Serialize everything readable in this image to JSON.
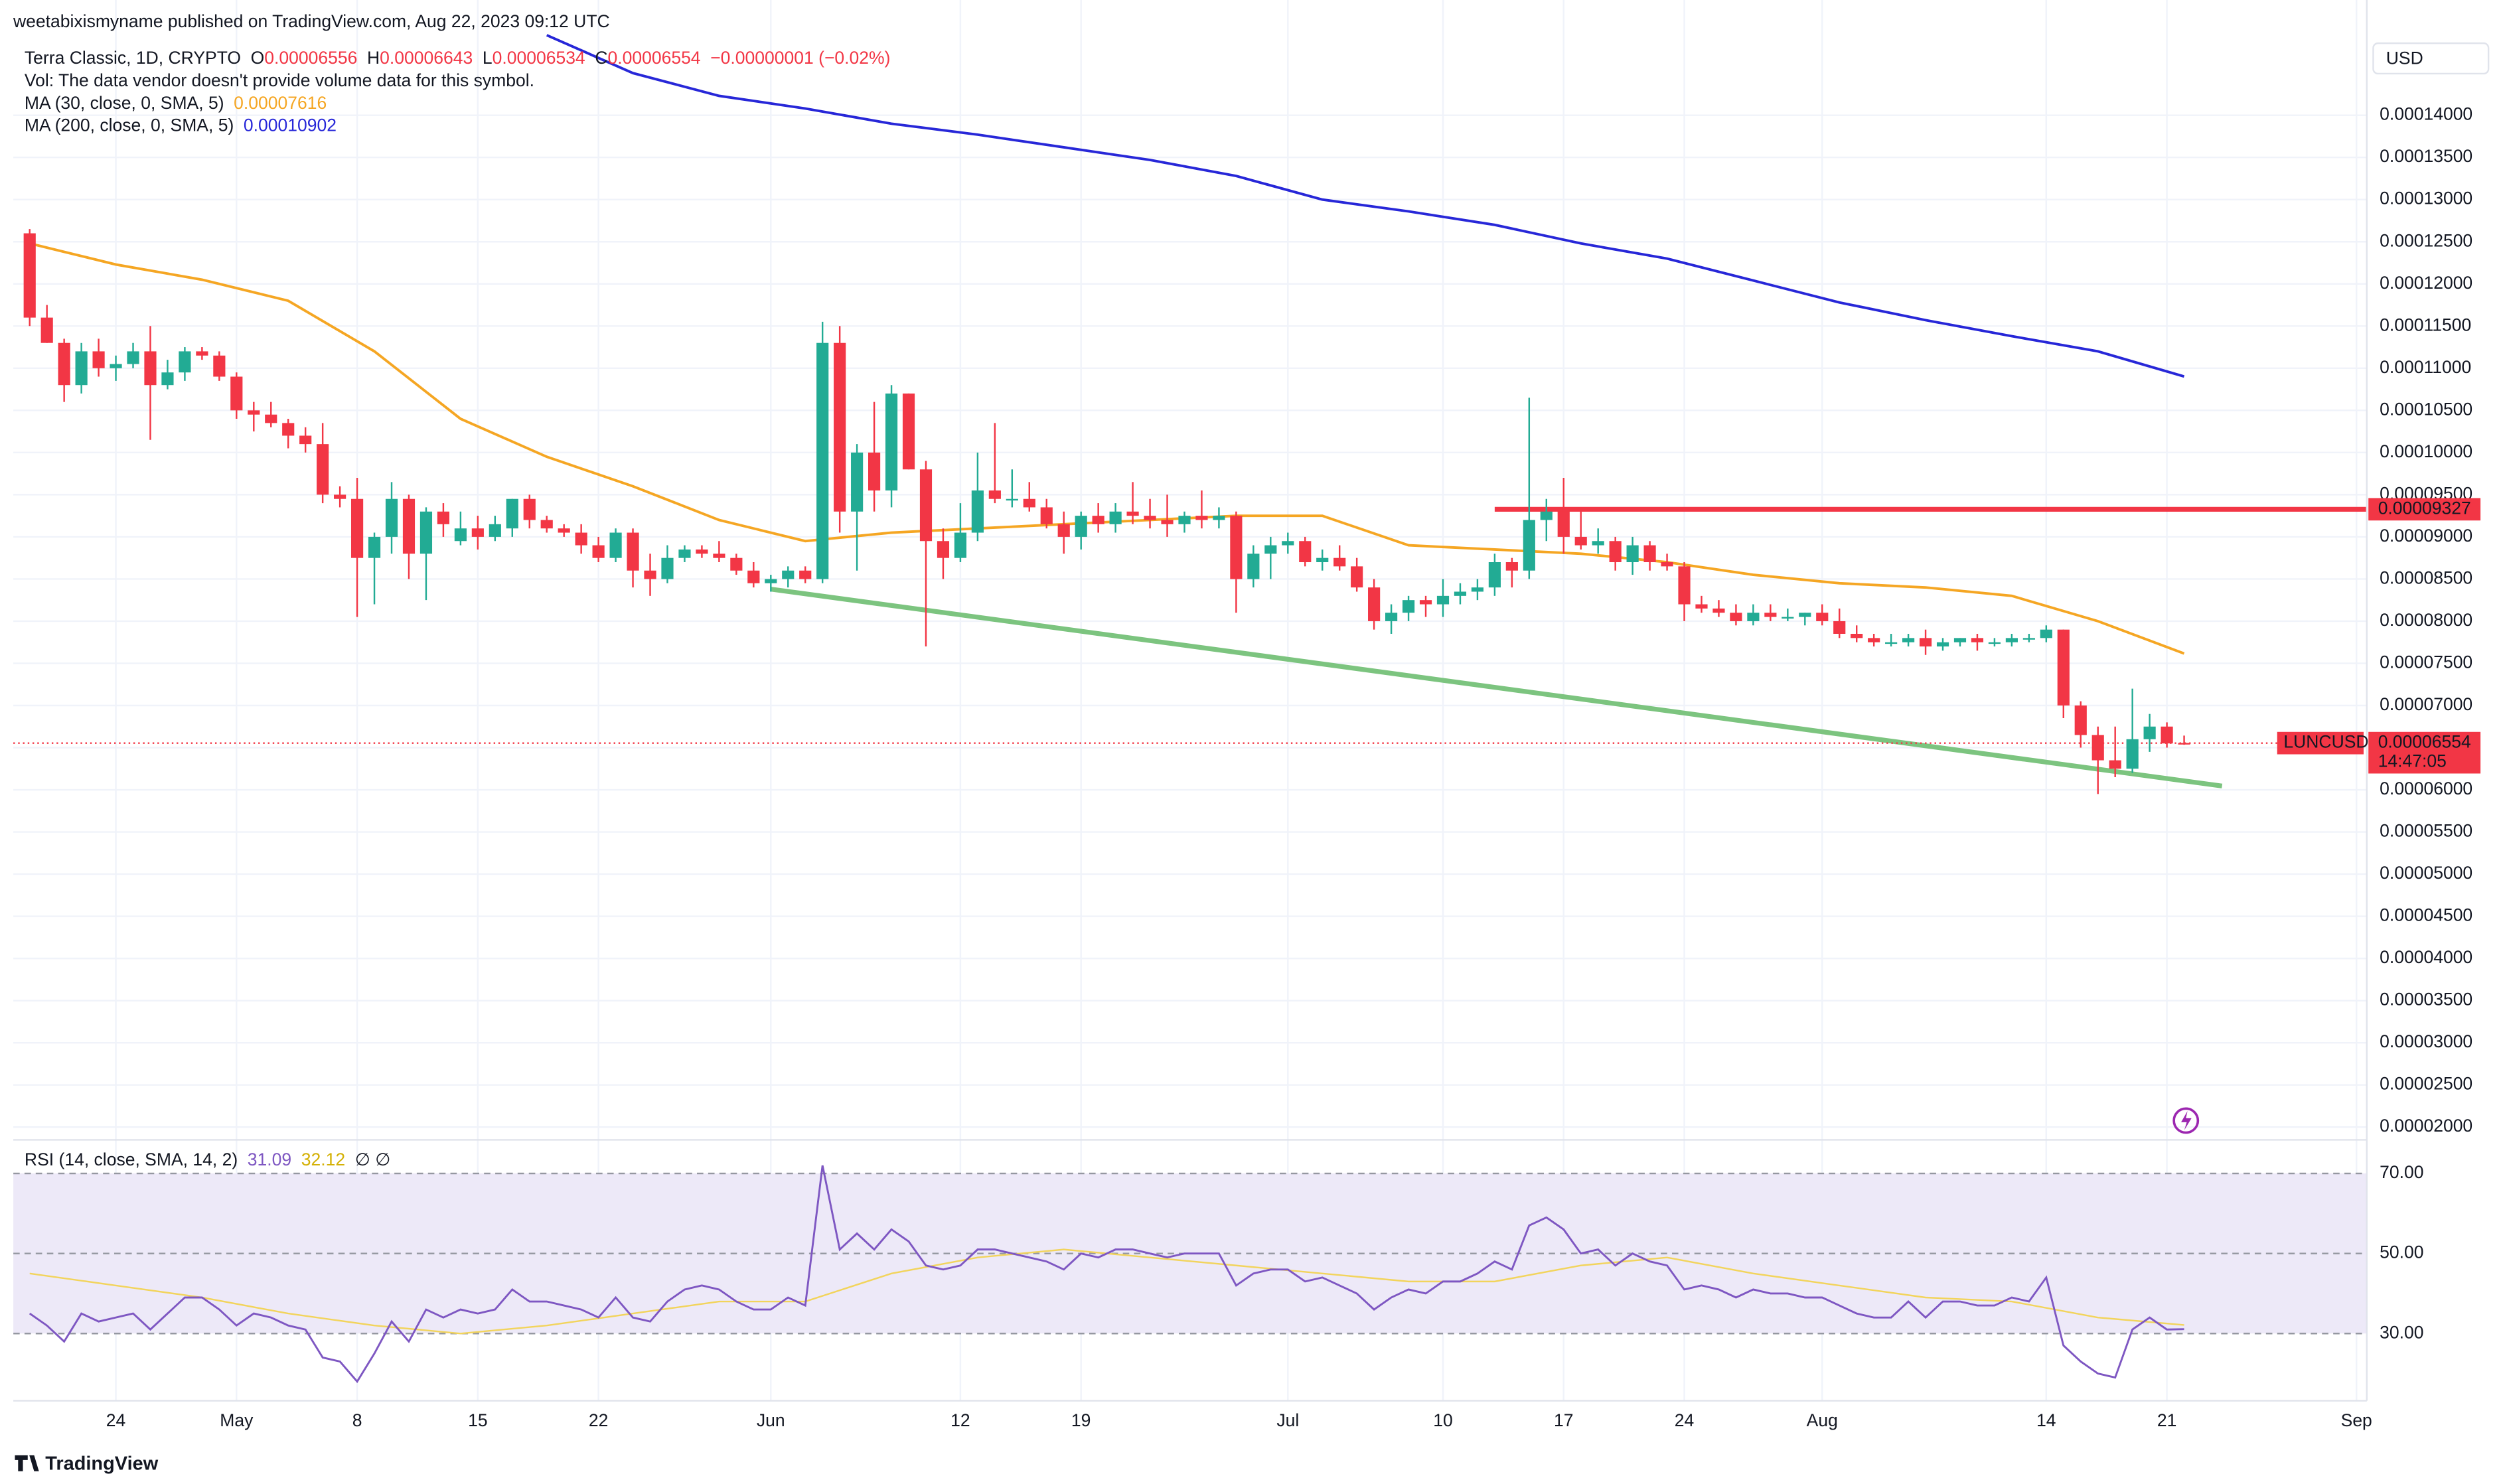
{
  "header": {
    "published": "weetabixismyname published on TradingView.com, Aug 22, 2023 09:12 UTC",
    "symbol": "Terra Classic, 1D, CRYPTO",
    "ohlc": [
      {
        "key": "O",
        "value": "0.00006556"
      },
      {
        "key": "H",
        "value": "0.00006643"
      },
      {
        "key": "L",
        "value": "0.00006534"
      },
      {
        "key": "C",
        "value": "0.00006554"
      }
    ],
    "change": "−0.00000001 (−0.02%)",
    "volume_note": "Vol: The data vendor doesn't provide volume data for this symbol."
  },
  "currency": "USD",
  "branding": "TradingView",
  "chart_data": [
    {
      "type": "candlestick",
      "up_color": "#22ab94",
      "down_color": "#f23645",
      "grid": true,
      "xlim": [
        -0.95,
        135.6
      ],
      "xticks": [
        {
          "value": 5,
          "label": "24"
        },
        {
          "value": 12,
          "label": "May"
        },
        {
          "value": 19,
          "label": "8"
        },
        {
          "value": 26,
          "label": "15"
        },
        {
          "value": 33,
          "label": "22"
        },
        {
          "value": 43,
          "label": "Jun"
        },
        {
          "value": 54,
          "label": "12"
        },
        {
          "value": 61,
          "label": "19"
        },
        {
          "value": 73,
          "label": "Jul"
        },
        {
          "value": 82,
          "label": "10"
        },
        {
          "value": 89,
          "label": "17"
        },
        {
          "value": 96,
          "label": "24"
        },
        {
          "value": 104,
          "label": "Aug"
        },
        {
          "value": 117,
          "label": "14"
        },
        {
          "value": 124,
          "label": "21"
        },
        {
          "value": 135,
          "label": "Sep"
        }
      ],
      "ylim": [
        1.849e-05,
        0.00015367
      ],
      "yticks": [
        {
          "value": 2e-05,
          "label": "0.00002000"
        },
        {
          "value": 2.5e-05,
          "label": "0.00002500"
        },
        {
          "value": 3e-05,
          "label": "0.00003000"
        },
        {
          "value": 3.5e-05,
          "label": "0.00003500"
        },
        {
          "value": 4e-05,
          "label": "0.00004000"
        },
        {
          "value": 4.5e-05,
          "label": "0.00004500"
        },
        {
          "value": 5e-05,
          "label": "0.00005000"
        },
        {
          "value": 5.5e-05,
          "label": "0.00005500"
        },
        {
          "value": 6e-05,
          "label": "0.00006000"
        },
        {
          "value": 6.5e-05,
          "label": "0.00006500"
        },
        {
          "value": 7e-05,
          "label": "0.00007000"
        },
        {
          "value": 7.5e-05,
          "label": "0.00007500"
        },
        {
          "value": 8e-05,
          "label": "0.00008000"
        },
        {
          "value": 8.5e-05,
          "label": "0.00008500"
        },
        {
          "value": 9e-05,
          "label": "0.00009000"
        },
        {
          "value": 9.5e-05,
          "label": "0.00009500"
        },
        {
          "value": 0.0001,
          "label": "0.00010000"
        },
        {
          "value": 0.000105,
          "label": "0.00010500"
        },
        {
          "value": 0.00011,
          "label": "0.00011000"
        },
        {
          "value": 0.000115,
          "label": "0.00011500"
        },
        {
          "value": 0.00012,
          "label": "0.00012000"
        },
        {
          "value": 0.000125,
          "label": "0.00012500"
        },
        {
          "value": 0.00013,
          "label": "0.00013000"
        },
        {
          "value": 0.000135,
          "label": "0.00013500"
        },
        {
          "value": 0.00014,
          "label": "0.00014000"
        }
      ],
      "open": [
        0.000126,
        0.000116,
        0.000113,
        0.000108,
        0.000112,
        0.00011,
        0.0001105,
        0.000112,
        0.000108,
        0.0001095,
        0.000112,
        0.0001115,
        0.000109,
        0.000105,
        0.0001045,
        0.0001035,
        0.000102,
        0.000101,
        9.5e-05,
        9.45e-05,
        8.75e-05,
        9e-05,
        9.45e-05,
        8.8e-05,
        9.3e-05,
        8.95e-05,
        9.1e-05,
        9e-05,
        9.1e-05,
        9.45e-05,
        9.2e-05,
        9.1e-05,
        9.05e-05,
        8.9e-05,
        8.75e-05,
        9.05e-05,
        8.6e-05,
        8.5e-05,
        8.75e-05,
        8.85e-05,
        8.8e-05,
        8.75e-05,
        8.6e-05,
        8.45e-05,
        8.5e-05,
        8.6e-05,
        8.5e-05,
        0.000113,
        9.3e-05,
        0.0001,
        9.55e-05,
        0.000107,
        9.8e-05,
        8.95e-05,
        8.75e-05,
        9.05e-05,
        9.55e-05,
        9.45e-05,
        9.45e-05,
        9.35e-05,
        9.15e-05,
        9e-05,
        9.25e-05,
        9.15e-05,
        9.3e-05,
        9.25e-05,
        9.2e-05,
        9.15e-05,
        9.25e-05,
        9.2e-05,
        9.25e-05,
        8.5e-05,
        8.8e-05,
        8.9e-05,
        8.95e-05,
        8.7e-05,
        8.75e-05,
        8.65e-05,
        8.4e-05,
        8e-05,
        8.1e-05,
        8.25e-05,
        8.2e-05,
        8.3e-05,
        8.35e-05,
        8.4e-05,
        8.7e-05,
        8.6e-05,
        9.2e-05,
        9.3e-05,
        9e-05,
        8.9e-05,
        8.95e-05,
        8.7e-05,
        8.9e-05,
        8.7e-05,
        8.65e-05,
        8.2e-05,
        8.15e-05,
        8.1e-05,
        8e-05,
        8.1e-05,
        8.05e-05,
        8.05e-05,
        8.1e-05,
        8e-05,
        7.85e-05,
        7.8e-05,
        7.75e-05,
        7.75e-05,
        7.8e-05,
        7.7e-05,
        7.75e-05,
        7.8e-05,
        7.75e-05,
        7.75e-05,
        7.8e-05,
        7.8e-05,
        7.9e-05,
        7e-05,
        6.65e-05,
        6.35e-05,
        6.25e-05,
        6.6e-05,
        6.75e-05,
        6.556e-05
      ],
      "high": [
        0.0001265,
        0.0001175,
        0.0001135,
        0.000113,
        0.0001135,
        0.0001115,
        0.000113,
        0.000115,
        0.000111,
        0.0001125,
        0.0001125,
        0.000112,
        0.0001095,
        0.000106,
        0.000106,
        0.000104,
        0.000103,
        0.0001035,
        9.6e-05,
        9.7e-05,
        9.05e-05,
        9.65e-05,
        9.5e-05,
        9.35e-05,
        9.4e-05,
        9.3e-05,
        9.25e-05,
        9.25e-05,
        9.45e-05,
        9.5e-05,
        9.25e-05,
        9.15e-05,
        9.15e-05,
        9e-05,
        9.1e-05,
        9.1e-05,
        8.8e-05,
        8.9e-05,
        8.9e-05,
        8.9e-05,
        8.95e-05,
        8.8e-05,
        8.7e-05,
        8.55e-05,
        8.65e-05,
        8.65e-05,
        0.0001155,
        0.000115,
        0.000101,
        0.000106,
        0.000108,
        0.000107,
        9.9e-05,
        9.1e-05,
        9.4e-05,
        0.0001,
        0.0001035,
        9.8e-05,
        9.65e-05,
        9.45e-05,
        9.3e-05,
        9.3e-05,
        9.4e-05,
        9.4e-05,
        9.65e-05,
        9.45e-05,
        9.5e-05,
        9.3e-05,
        9.55e-05,
        9.35e-05,
        9.3e-05,
        8.9e-05,
        9e-05,
        9.05e-05,
        9e-05,
        8.85e-05,
        8.9e-05,
        8.75e-05,
        8.5e-05,
        8.2e-05,
        8.3e-05,
        8.3e-05,
        8.5e-05,
        8.45e-05,
        8.5e-05,
        8.8e-05,
        8.75e-05,
        0.0001065,
        9.45e-05,
        9.7e-05,
        9.3e-05,
        9.1e-05,
        9e-05,
        9e-05,
        8.95e-05,
        8.8e-05,
        8.7e-05,
        8.3e-05,
        8.25e-05,
        8.2e-05,
        8.2e-05,
        8.2e-05,
        8.15e-05,
        8.1e-05,
        8.2e-05,
        8.15e-05,
        7.95e-05,
        7.85e-05,
        7.85e-05,
        7.85e-05,
        7.9e-05,
        7.8e-05,
        7.8e-05,
        7.85e-05,
        7.8e-05,
        7.85e-05,
        7.85e-05,
        7.95e-05,
        7.9e-05,
        7.05e-05,
        6.75e-05,
        6.75e-05,
        7.2e-05,
        6.9e-05,
        6.8e-05,
        6.643e-05
      ],
      "low": [
        0.000115,
        0.000113,
        0.000106,
        0.000107,
        0.000109,
        0.0001085,
        0.00011,
        0.0001015,
        0.0001075,
        0.0001085,
        0.000111,
        0.0001085,
        0.000104,
        0.0001025,
        0.000103,
        0.0001005,
        0.0001,
        9.4e-05,
        9.35e-05,
        8.05e-05,
        8.2e-05,
        8.8e-05,
        8.5e-05,
        8.25e-05,
        9e-05,
        8.9e-05,
        8.85e-05,
        8.95e-05,
        9e-05,
        9.1e-05,
        9.05e-05,
        9e-05,
        8.8e-05,
        8.7e-05,
        8.7e-05,
        8.4e-05,
        8.3e-05,
        8.45e-05,
        8.7e-05,
        8.75e-05,
        8.7e-05,
        8.55e-05,
        8.4e-05,
        8.35e-05,
        8.4e-05,
        8.45e-05,
        8.45e-05,
        9.05e-05,
        8.6e-05,
        9.3e-05,
        9.35e-05,
        9.8e-05,
        7.7e-05,
        8.5e-05,
        8.7e-05,
        8.95e-05,
        9.4e-05,
        9.35e-05,
        9.3e-05,
        9.1e-05,
        8.8e-05,
        8.85e-05,
        9.05e-05,
        9.05e-05,
        9.15e-05,
        9.1e-05,
        9e-05,
        9.05e-05,
        9.1e-05,
        9.1e-05,
        8.1e-05,
        8.4e-05,
        8.5e-05,
        8.8e-05,
        8.65e-05,
        8.6e-05,
        8.6e-05,
        8.35e-05,
        7.9e-05,
        7.85e-05,
        8e-05,
        8.05e-05,
        8.05e-05,
        8.2e-05,
        8.25e-05,
        8.3e-05,
        8.4e-05,
        8.5e-05,
        8.95e-05,
        8.8e-05,
        8.85e-05,
        8.8e-05,
        8.6e-05,
        8.55e-05,
        8.6e-05,
        8.6e-05,
        8e-05,
        8.1e-05,
        8.05e-05,
        7.95e-05,
        7.95e-05,
        8e-05,
        8e-05,
        7.95e-05,
        7.95e-05,
        7.8e-05,
        7.75e-05,
        7.7e-05,
        7.7e-05,
        7.7e-05,
        7.6e-05,
        7.65e-05,
        7.7e-05,
        7.65e-05,
        7.7e-05,
        7.7e-05,
        7.75e-05,
        7.75e-05,
        6.85e-05,
        6.5e-05,
        5.95e-05,
        6.15e-05,
        6.2e-05,
        6.45e-05,
        6.5e-05,
        6.534e-05
      ],
      "close": [
        0.000116,
        0.000113,
        0.000108,
        0.000112,
        0.00011,
        0.0001105,
        0.000112,
        0.000108,
        0.0001095,
        0.000112,
        0.0001115,
        0.000109,
        0.000105,
        0.0001045,
        0.0001035,
        0.000102,
        0.000101,
        9.5e-05,
        9.45e-05,
        8.75e-05,
        9e-05,
        9.45e-05,
        8.8e-05,
        9.3e-05,
        9.15e-05,
        9.1e-05,
        9e-05,
        9.15e-05,
        9.45e-05,
        9.2e-05,
        9.1e-05,
        9.05e-05,
        8.9e-05,
        8.75e-05,
        9.05e-05,
        8.6e-05,
        8.5e-05,
        8.75e-05,
        8.85e-05,
        8.8e-05,
        8.75e-05,
        8.6e-05,
        8.45e-05,
        8.5e-05,
        8.6e-05,
        8.5e-05,
        0.000113,
        9.3e-05,
        0.0001,
        9.55e-05,
        0.000107,
        9.8e-05,
        8.95e-05,
        8.75e-05,
        9.05e-05,
        9.55e-05,
        9.45e-05,
        9.45e-05,
        9.35e-05,
        9.15e-05,
        9e-05,
        9.25e-05,
        9.15e-05,
        9.3e-05,
        9.25e-05,
        9.2e-05,
        9.15e-05,
        9.25e-05,
        9.2e-05,
        9.25e-05,
        8.5e-05,
        8.8e-05,
        8.9e-05,
        8.95e-05,
        8.7e-05,
        8.75e-05,
        8.65e-05,
        8.4e-05,
        8e-05,
        8.1e-05,
        8.25e-05,
        8.2e-05,
        8.3e-05,
        8.35e-05,
        8.4e-05,
        8.7e-05,
        8.6e-05,
        9.2e-05,
        9.3e-05,
        9e-05,
        8.9e-05,
        8.95e-05,
        8.7e-05,
        8.9e-05,
        8.7e-05,
        8.65e-05,
        8.2e-05,
        8.15e-05,
        8.1e-05,
        8e-05,
        8.1e-05,
        8.05e-05,
        8.05e-05,
        8.1e-05,
        8e-05,
        7.85e-05,
        7.8e-05,
        7.75e-05,
        7.75e-05,
        7.8e-05,
        7.7e-05,
        7.75e-05,
        7.8e-05,
        7.75e-05,
        7.75e-05,
        7.8e-05,
        7.8e-05,
        7.9e-05,
        7e-05,
        6.65e-05,
        6.35e-05,
        6.25e-05,
        6.6e-05,
        6.75e-05,
        6.55e-05,
        6.554e-05
      ],
      "overlays": [
        {
          "name": "MA (30, close, 0, SMA, 5)",
          "value_label": "0.00007616",
          "color": "#f5a623",
          "x": [
            0,
            5,
            10,
            15,
            20,
            25,
            30,
            35,
            40,
            45,
            50,
            55,
            60,
            65,
            70,
            75,
            80,
            85,
            90,
            95,
            100,
            105,
            110,
            115,
            120,
            125
          ],
          "values": [
            0.0001248,
            0.0001223,
            0.0001205,
            0.000118,
            0.000112,
            0.000104,
            9.95e-05,
            9.6e-05,
            9.2e-05,
            8.95e-05,
            9.05e-05,
            9.1e-05,
            9.15e-05,
            9.2e-05,
            9.25e-05,
            9.25e-05,
            8.9e-05,
            8.85e-05,
            8.8e-05,
            8.7e-05,
            8.55e-05,
            8.45e-05,
            8.4e-05,
            8.3e-05,
            8e-05,
            7.616e-05
          ]
        },
        {
          "name": "MA (200, close, 0, SMA, 5)",
          "value_label": "0.00010902",
          "color": "#2727d8",
          "x": [
            30,
            35,
            40,
            45,
            50,
            55,
            60,
            65,
            70,
            75,
            80,
            85,
            90,
            95,
            100,
            105,
            110,
            115,
            120,
            125
          ],
          "values": [
            0.0001495,
            0.000145,
            0.0001423,
            0.0001408,
            0.000139,
            0.0001377,
            0.0001362,
            0.0001347,
            0.0001328,
            0.00013,
            0.0001286,
            0.000127,
            0.0001248,
            0.000123,
            0.0001204,
            0.0001178,
            0.0001157,
            0.0001138,
            0.000112,
            0.00010902
          ]
        }
      ],
      "horizontal_line": {
        "from_x": 85,
        "value": 9.327e-05,
        "label": "0.00009327",
        "color": "#f23645"
      },
      "trend_line": {
        "x": [
          43,
          127.2
        ],
        "values": [
          8.38e-05,
          6.045e-05
        ],
        "color": "#7cc47f"
      },
      "last_price": {
        "symbol": "LUNCUSD",
        "value_label": "0.00006554",
        "countdown": "14:47:05",
        "color": "#f23645"
      }
    },
    {
      "type": "line",
      "title": "RSI (14, close, SMA, 14, 2)",
      "legend_extra": "∅ ∅",
      "ylim": [
        13.2,
        78.4
      ],
      "yticks": [
        {
          "value": 70,
          "label": "70.00"
        },
        {
          "value": 50,
          "label": "50.00"
        },
        {
          "value": 30,
          "label": "30.00"
        }
      ],
      "band_color": "#ede9f8",
      "series": [
        {
          "color": "#7e57c2",
          "value_label": "31.09",
          "values": [
            35,
            32,
            28,
            35,
            33,
            34,
            35,
            31,
            35,
            39,
            39,
            36,
            32,
            35,
            34,
            32,
            31,
            24,
            23,
            18,
            25,
            33,
            28,
            36,
            34,
            36,
            35,
            36,
            41,
            38,
            38,
            37,
            36,
            34,
            39,
            34,
            33,
            38,
            41,
            42,
            41,
            38,
            36,
            36,
            39,
            37,
            72,
            51,
            55,
            51,
            56,
            53,
            47,
            46,
            47,
            51,
            51,
            50,
            49,
            48,
            46,
            50,
            49,
            51,
            51,
            50,
            49,
            50,
            50,
            50,
            42,
            45,
            46,
            46,
            43,
            44,
            42,
            40,
            36,
            39,
            41,
            40,
            43,
            43,
            45,
            48,
            46,
            57,
            59,
            56,
            50,
            51,
            47,
            50,
            48,
            47,
            41,
            42,
            41,
            39,
            41,
            40,
            40,
            39,
            39,
            37,
            35,
            34,
            34,
            38,
            34,
            38,
            38,
            37,
            37,
            39,
            38,
            44,
            27,
            23,
            20,
            19,
            31,
            34,
            31,
            31.09
          ]
        },
        {
          "color": "#f2d45c",
          "value_label": "32.12",
          "x": [
            0,
            5,
            10,
            15,
            20,
            25,
            30,
            35,
            40,
            45,
            50,
            55,
            60,
            65,
            70,
            75,
            80,
            85,
            90,
            95,
            100,
            105,
            110,
            115,
            120,
            125
          ],
          "values": [
            45,
            42,
            39,
            35,
            32,
            30,
            32,
            35,
            38,
            38,
            45,
            49,
            51,
            49,
            47,
            45,
            43,
            43,
            47,
            49,
            45,
            42,
            39,
            38,
            34,
            32.12
          ]
        }
      ]
    }
  ]
}
